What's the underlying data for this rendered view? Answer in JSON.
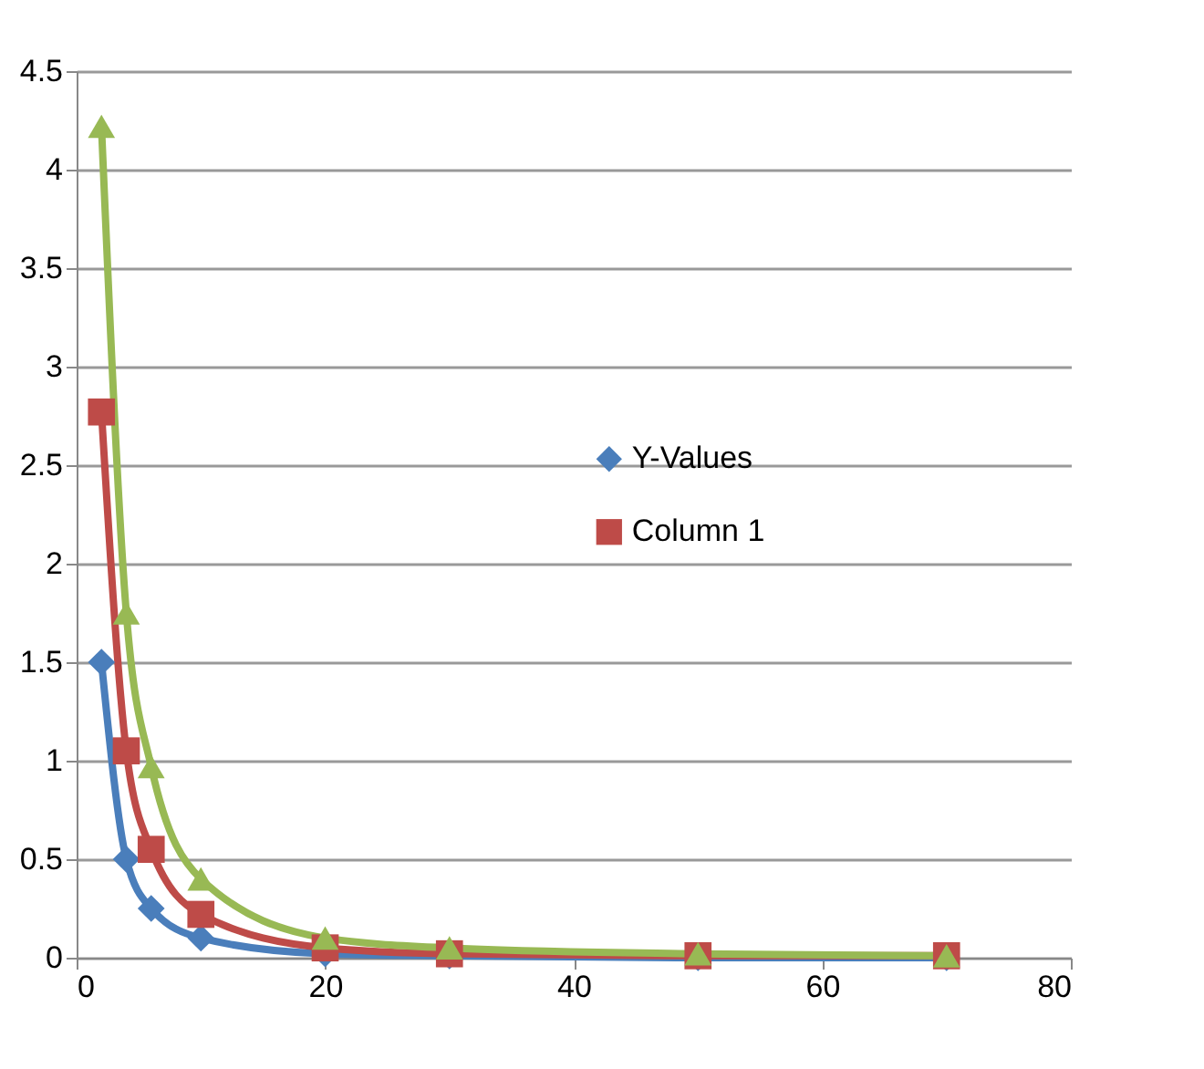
{
  "chart_data": {
    "type": "line",
    "x": [
      2,
      4,
      6,
      10,
      20,
      30,
      50,
      70
    ],
    "series": [
      {
        "name": "Y-Values",
        "color": "#4a7ebb",
        "marker": "diamond",
        "values": [
          1.5,
          0.5,
          0.25,
          0.1,
          0.02,
          0.01,
          0,
          0
        ]
      },
      {
        "name": "Column 1",
        "color": "#be4b48",
        "marker": "square",
        "values": [
          2.77,
          1.05,
          0.55,
          0.22,
          0.05,
          0.02,
          0.01,
          0.01
        ]
      },
      {
        "color": "#98b954",
        "marker": "triangle",
        "values": [
          4.22,
          1.75,
          0.97,
          0.4,
          0.1,
          0.05,
          0.02,
          0.01
        ]
      }
    ],
    "xlim": [
      0,
      80
    ],
    "xticks": [
      0,
      20,
      40,
      60,
      80
    ],
    "ylim": [
      0,
      4.5
    ],
    "yticks": [
      0,
      0.5,
      1,
      1.5,
      2,
      2.5,
      3,
      3.5,
      4,
      4.5
    ],
    "grid": "y",
    "legend": "right"
  }
}
